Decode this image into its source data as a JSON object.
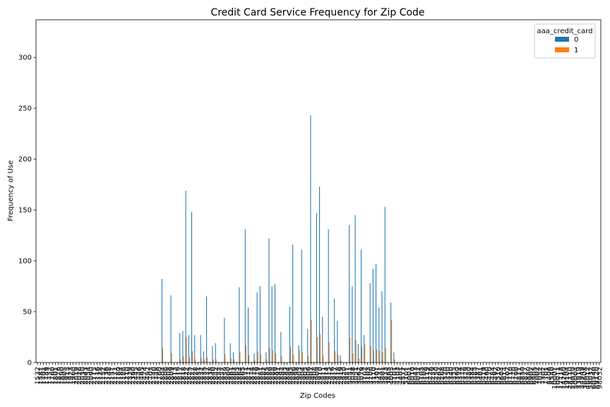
{
  "chart_data": {
    "type": "bar",
    "title": "Credit Card Service Frequency for Zip Code",
    "xlabel": "Zip Codes",
    "ylabel": "Frequency of Use",
    "ylim": [
      0,
      337
    ],
    "yticks": [
      0,
      50,
      100,
      150,
      200,
      250,
      300
    ],
    "grid": false,
    "legend": {
      "title": "aaa_credit_card",
      "placement": "top-right"
    },
    "colors": {
      "0": "#1f77b4",
      "1": "#ff7f0e"
    },
    "x_tick_labels": [
      "1532",
      "1581",
      "1701",
      "1749",
      "1752",
      "1760",
      "1801",
      "1876",
      "1890",
      "1905",
      "1915",
      "1923",
      "1960",
      "2019",
      "2026",
      "2030",
      "2043",
      "2054",
      "2090",
      "2115",
      "2116",
      "2128",
      "2132",
      "2136",
      "2148",
      "2151",
      "2171",
      "2180",
      "2184",
      "2186",
      "2210",
      "2339",
      "2360",
      "2445",
      "2446",
      "2465",
      "2474",
      "2492",
      "2703",
      "2740",
      "2748",
      "2760",
      "2804",
      "2806",
      "2808",
      "2809",
      "2813",
      "2816",
      "2817",
      "2818",
      "2822",
      "2825",
      "2827",
      "2828",
      "2831",
      "2832",
      "2835",
      "2837",
      "2838",
      "2840",
      "2842",
      "2852",
      "2857",
      "2859",
      "2860",
      "2861",
      "2862",
      "2863",
      "2864",
      "2865",
      "2871",
      "2872",
      "2874",
      "2878",
      "2879",
      "2881",
      "2882",
      "2885",
      "2886",
      "2888",
      "2889",
      "2891",
      "2892",
      "2893",
      "2894",
      "2895",
      "2896",
      "2898",
      "2903",
      "2904",
      "2905",
      "2906",
      "2907",
      "2908",
      "2909",
      "2910",
      "2911",
      "2914",
      "2915",
      "2916",
      "2917",
      "2918",
      "2919",
      "2920",
      "2921",
      "3031",
      "3038",
      "3051",
      "3062",
      "3079",
      "3102",
      "3103",
      "3106",
      "3110",
      "3301",
      "3431",
      "3801",
      "3833",
      "3865",
      "4005",
      "4101",
      "4103",
      "4401",
      "4572",
      "5101",
      "6001",
      "6010",
      "6043",
      "6051",
      "6105",
      "6108",
      "6119",
      "6226",
      "6239",
      "6250",
      "6262",
      "6268",
      "6320",
      "6330",
      "6340",
      "6355",
      "6360",
      "6374",
      "6378",
      "6379",
      "6380",
      "6384",
      "6385",
      "6387",
      "6401",
      "6419",
      "6460",
      "6470",
      "6484",
      "6492",
      "6510",
      "6604",
      "6614",
      "6702",
      "6710",
      "6770",
      "6790",
      "6811",
      "6850",
      "6877",
      "6880",
      "6902",
      "6905",
      "7002",
      "7052",
      "7302",
      "7701",
      "8406",
      "8540",
      "10001",
      "10011",
      "12118",
      "14260",
      "19104",
      "28110",
      "29020",
      "30004",
      "33919",
      "34949",
      "36608",
      "46012",
      "58032",
      "60540",
      "89120",
      "98032"
    ],
    "bar_values": {
      "0": [
        0,
        0,
        0,
        0,
        0,
        0,
        0,
        0,
        0,
        0,
        0,
        0,
        0,
        0,
        0,
        0,
        0,
        0,
        0,
        0,
        0,
        0,
        0,
        0,
        0,
        0,
        0,
        0,
        0,
        0,
        0,
        0,
        0,
        0,
        0,
        0,
        0,
        0,
        0,
        0,
        0,
        0,
        82,
        0,
        0,
        66,
        0,
        0,
        29,
        31,
        169,
        27,
        148,
        27,
        0,
        27,
        11,
        65,
        0,
        16,
        19,
        0,
        0,
        44,
        0,
        19,
        10,
        0,
        74,
        0,
        131,
        54,
        0,
        9,
        69,
        75,
        0,
        10,
        122,
        75,
        77,
        0,
        30,
        0,
        0,
        55,
        116,
        0,
        17,
        111,
        0,
        33,
        243,
        0,
        147,
        173,
        45,
        0,
        131,
        0,
        63,
        41,
        7,
        0,
        0,
        135,
        75,
        145,
        18,
        111,
        27,
        0,
        78,
        92,
        97,
        54,
        70,
        153,
        0,
        59,
        10,
        0,
        0,
        0,
        0,
        0,
        0,
        0,
        0,
        0,
        0,
        0,
        0,
        0,
        0,
        0,
        0,
        0,
        0,
        0,
        0,
        0,
        0,
        0,
        0,
        0,
        0,
        0,
        0,
        0,
        0,
        0,
        0,
        0,
        0,
        0,
        0,
        0,
        0,
        0,
        0,
        0,
        0,
        0,
        0,
        0,
        0,
        0,
        0,
        0,
        0,
        0,
        0,
        0,
        0,
        0,
        0,
        0,
        0,
        0,
        0,
        0,
        0,
        0,
        0
      ],
      "1": [
        0,
        0,
        0,
        0,
        0,
        0,
        0,
        0,
        0,
        0,
        0,
        0,
        0,
        0,
        0,
        0,
        0,
        0,
        0,
        0,
        0,
        0,
        0,
        0,
        0,
        0,
        0,
        0,
        0,
        0,
        0,
        0,
        0,
        0,
        0,
        0,
        0,
        0,
        0,
        0,
        0,
        0,
        14,
        0,
        0,
        9,
        0,
        0,
        3,
        6,
        25,
        5,
        11,
        3,
        0,
        5,
        3,
        5,
        0,
        3,
        3,
        0,
        0,
        8,
        0,
        4,
        3,
        0,
        10,
        0,
        17,
        7,
        0,
        2,
        11,
        8,
        0,
        3,
        14,
        12,
        9,
        0,
        6,
        0,
        0,
        15,
        8,
        0,
        12,
        10,
        0,
        6,
        42,
        0,
        25,
        28,
        7,
        0,
        20,
        0,
        11,
        8,
        2,
        0,
        0,
        25,
        9,
        22,
        4,
        15,
        18,
        0,
        16,
        12,
        13,
        12,
        10,
        14,
        0,
        42,
        3,
        0,
        0,
        0,
        0,
        0,
        0,
        0,
        0,
        0,
        0,
        0,
        0,
        0,
        0,
        0,
        0,
        0,
        0,
        0,
        0,
        0,
        0,
        0,
        0,
        0,
        0,
        0,
        0,
        0,
        0,
        0,
        0,
        0,
        0,
        0,
        0,
        0,
        0,
        0,
        0,
        0,
        0,
        0,
        0,
        0,
        0,
        0,
        0,
        0,
        0,
        0,
        0,
        0,
        0,
        0,
        0,
        0,
        0,
        0,
        0,
        0,
        0,
        0,
        0
      ]
    },
    "series": [
      {
        "name": "0",
        "key": "0"
      },
      {
        "name": "1",
        "key": "1"
      }
    ]
  }
}
